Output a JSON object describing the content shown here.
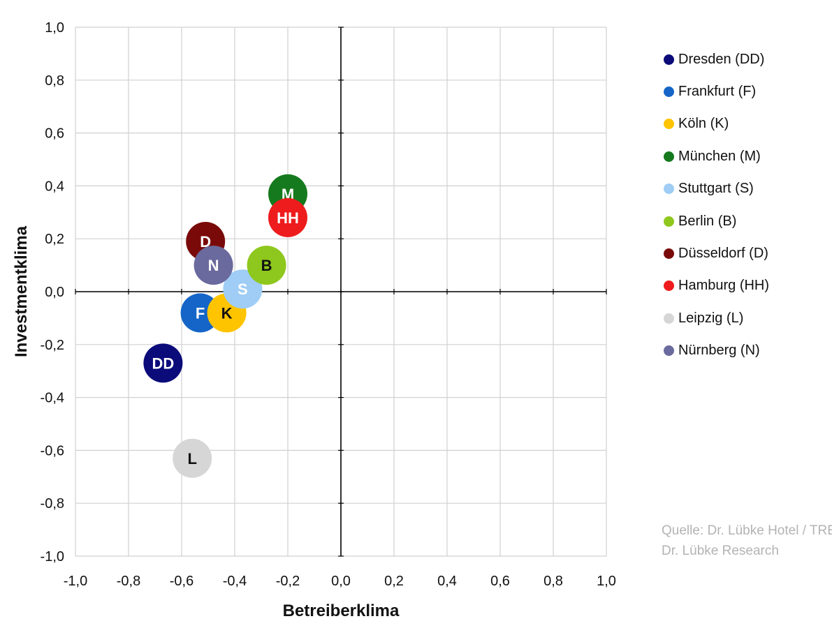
{
  "chart_data": {
    "type": "scatter",
    "title": "",
    "xlabel": "Betreiberklima",
    "ylabel": "Investmentklima",
    "xlim": [
      -1.0,
      1.0
    ],
    "ylim": [
      -1.0,
      1.0
    ],
    "grid": true,
    "legend_position": "right",
    "x_ticks": [
      -1.0,
      -0.8,
      -0.6,
      -0.4,
      -0.2,
      0.0,
      0.2,
      0.4,
      0.6,
      0.8,
      1.0
    ],
    "y_ticks": [
      -1.0,
      -0.8,
      -0.6,
      -0.4,
      -0.2,
      0.0,
      0.2,
      0.4,
      0.6,
      0.8,
      1.0
    ],
    "x_tick_labels": [
      "-1,0",
      "-0,8",
      "-0,6",
      "-0,4",
      "-0,2",
      "0,0",
      "0,2",
      "0,4",
      "0,6",
      "0,8",
      "1,0"
    ],
    "y_tick_labels": [
      "-1,0",
      "-0,8",
      "-0,6",
      "-0,4",
      "-0,2",
      "0,0",
      "0,2",
      "0,4",
      "0,6",
      "0,8",
      "1,0"
    ],
    "series": [
      {
        "name": "Dresden (DD)",
        "label": "DD",
        "x": -0.67,
        "y": -0.27,
        "color": "#0b0b7a",
        "label_color": "#ffffff"
      },
      {
        "name": "Frankfurt (F)",
        "label": "F",
        "x": -0.53,
        "y": -0.08,
        "color": "#1565c8",
        "label_color": "#ffffff"
      },
      {
        "name": "Köln (K)",
        "label": "K",
        "x": -0.43,
        "y": -0.08,
        "color": "#ffc400",
        "label_color": "#111111"
      },
      {
        "name": "München (M)",
        "label": "M",
        "x": -0.2,
        "y": 0.37,
        "color": "#157a1d",
        "label_color": "#ffffff"
      },
      {
        "name": "Stuttgart (S)",
        "label": "S",
        "x": -0.37,
        "y": 0.01,
        "color": "#9fcdf5",
        "label_color": "#ffffff"
      },
      {
        "name": "Berlin (B)",
        "label": "B",
        "x": -0.28,
        "y": 0.1,
        "color": "#8ec71d",
        "label_color": "#111111"
      },
      {
        "name": "Düsseldorf (D)",
        "label": "D",
        "x": -0.51,
        "y": 0.19,
        "color": "#7a0a0a",
        "label_color": "#ffffff"
      },
      {
        "name": "Hamburg (HH)",
        "label": "HH",
        "x": -0.2,
        "y": 0.28,
        "color": "#ee1c1c",
        "label_color": "#ffffff"
      },
      {
        "name": "Leipzig (L)",
        "label": "L",
        "x": -0.56,
        "y": -0.63,
        "color": "#d6d6d6",
        "label_color": "#111111"
      },
      {
        "name": "Nürnberg (N)",
        "label": "N",
        "x": -0.48,
        "y": 0.1,
        "color": "#6a6a9e",
        "label_color": "#ffffff"
      }
    ],
    "annotations": {
      "source_line1": "Quelle: Dr. Lübke Hotel / TREUGAST,",
      "source_line2": "Dr. Lübke Research"
    }
  }
}
